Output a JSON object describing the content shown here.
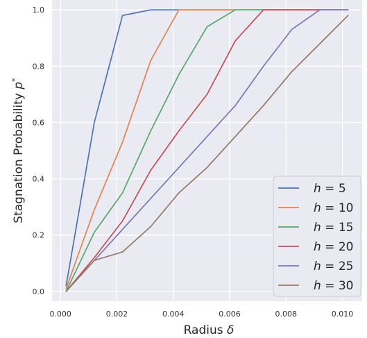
{
  "chart_data": {
    "type": "line",
    "xlabel": "Radius δ",
    "ylabel": "Stagnation Probability p*",
    "ylabel_main": "Stagnation Probability ",
    "ylabel_symbol": "p",
    "ylabel_sup": "*",
    "xlabel_main": "Radius ",
    "xlabel_symbol": "δ",
    "xlim": [
      -0.0003,
      0.0107
    ],
    "ylim": [
      -0.035,
      1.035
    ],
    "xticks": [
      0.0,
      0.002,
      0.004,
      0.006,
      0.008,
      0.01
    ],
    "xtick_labels": [
      "0.000",
      "0.002",
      "0.004",
      "0.006",
      "0.008",
      "0.010"
    ],
    "yticks": [
      0.0,
      0.2,
      0.4,
      0.6,
      0.8,
      1.0
    ],
    "ytick_labels": [
      "0.0",
      "0.2",
      "0.4",
      "0.6",
      "0.8",
      "1.0"
    ],
    "grid": true,
    "legend_position": "bottom-right",
    "x": [
      0.0002,
      0.0012,
      0.0022,
      0.0032,
      0.0042,
      0.0052,
      0.0062,
      0.0072,
      0.0082,
      0.0092,
      0.0102
    ],
    "series": [
      {
        "name": "h = 5",
        "label_var": "h",
        "label_val": " = 5",
        "color": "#4c72b0",
        "values": [
          0.02,
          0.6,
          0.98,
          1.0,
          1.0,
          1.0,
          1.0,
          1.0,
          1.0,
          1.0,
          1.0
        ]
      },
      {
        "name": "h = 10",
        "label_var": "h",
        "label_val": " = 10",
        "color": "#dd8452",
        "values": [
          0.01,
          0.29,
          0.53,
          0.82,
          1.0,
          1.0,
          1.0,
          1.0,
          1.0,
          1.0,
          1.0
        ]
      },
      {
        "name": "h = 15",
        "label_var": "h",
        "label_val": " = 15",
        "color": "#55a868",
        "values": [
          0.0,
          0.21,
          0.35,
          0.57,
          0.77,
          0.94,
          1.0,
          1.0,
          1.0,
          1.0,
          1.0
        ]
      },
      {
        "name": "h = 20",
        "label_var": "h",
        "label_val": " = 20",
        "color": "#c44e52",
        "values": [
          0.0,
          0.12,
          0.25,
          0.43,
          0.57,
          0.7,
          0.89,
          1.0,
          1.0,
          1.0,
          1.0
        ]
      },
      {
        "name": "h = 25",
        "label_var": "h",
        "label_val": " = 25",
        "color": "#8172b3",
        "values": [
          0.0,
          0.11,
          0.22,
          0.33,
          0.44,
          0.55,
          0.66,
          0.8,
          0.93,
          1.0,
          1.0
        ]
      },
      {
        "name": "h = 30",
        "label_var": "h",
        "label_val": " = 30",
        "color": "#937860",
        "values": [
          0.0,
          0.11,
          0.14,
          0.23,
          0.35,
          0.44,
          0.55,
          0.66,
          0.78,
          0.88,
          0.98
        ]
      }
    ]
  },
  "colors": {
    "plot_background": "#eaeaf2",
    "grid": "#ffffff",
    "legend_background": "#eaeaf2",
    "legend_border": "#cccccc"
  }
}
